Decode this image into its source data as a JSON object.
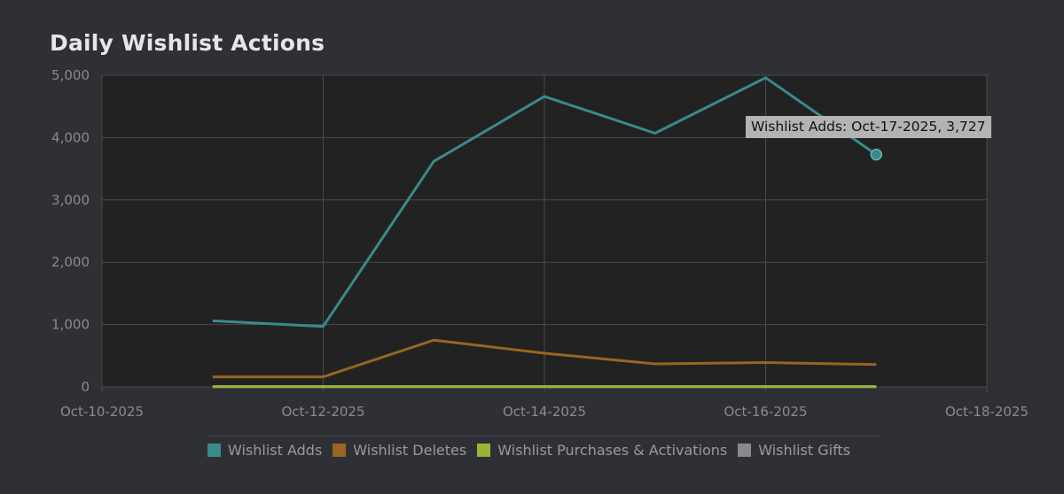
{
  "title": "Daily Wishlist Actions",
  "tooltip": "Wishlist Adds: Oct-17-2025, 3,727",
  "colors": {
    "background": "#2f3035",
    "plot_background": "#222222",
    "grid": "#4a4a4a",
    "wishlist_adds": "#3a8a8c",
    "wishlist_deletes": "#9a6422",
    "wishlist_purchases": "#9ab536",
    "wishlist_gifts": "#8a8a8a"
  },
  "legend": [
    {
      "label": "Wishlist Adds",
      "color": "#3a8a8c"
    },
    {
      "label": "Wishlist Deletes",
      "color": "#9a6422"
    },
    {
      "label": "Wishlist Purchases & Activations",
      "color": "#9ab536"
    },
    {
      "label": "Wishlist Gifts",
      "color": "#8a8a8a"
    }
  ],
  "chart_data": {
    "type": "line",
    "title": "Daily Wishlist Actions",
    "xlabel": "",
    "ylabel": "",
    "x_tick_labels": [
      "Oct-10-2025",
      "Oct-12-2025",
      "Oct-14-2025",
      "Oct-16-2025",
      "Oct-18-2025"
    ],
    "y_tick_labels": [
      "0",
      "1,000",
      "2,000",
      "3,000",
      "4,000",
      "5,000"
    ],
    "x_range": [
      "Oct-10-2025",
      "Oct-18-2025"
    ],
    "ylim": [
      0,
      5000
    ],
    "grid": true,
    "legend_position": "bottom",
    "x": [
      "Oct-11-2025",
      "Oct-12-2025",
      "Oct-13-2025",
      "Oct-14-2025",
      "Oct-15-2025",
      "Oct-16-2025",
      "Oct-17-2025"
    ],
    "series": [
      {
        "name": "Wishlist Adds",
        "color": "#3a8a8c",
        "values": [
          1060,
          970,
          3620,
          4660,
          4070,
          4960,
          3727
        ]
      },
      {
        "name": "Wishlist Deletes",
        "color": "#9a6422",
        "values": [
          160,
          160,
          750,
          540,
          370,
          390,
          360
        ]
      },
      {
        "name": "Wishlist Purchases & Activations",
        "color": "#9ab536",
        "values": [
          5,
          5,
          5,
          5,
          5,
          5,
          5
        ]
      },
      {
        "name": "Wishlist Gifts",
        "color": "#8a8a8a",
        "values": [
          2,
          2,
          2,
          2,
          2,
          2,
          2
        ]
      }
    ],
    "highlight": {
      "series": "Wishlist Adds",
      "x": "Oct-17-2025",
      "y": 3727
    }
  }
}
